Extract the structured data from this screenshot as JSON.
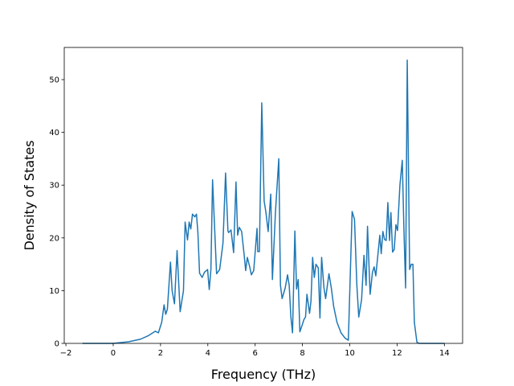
{
  "chart_data": {
    "type": "line",
    "xlabel": "Frequency (THz)",
    "ylabel": "Density of States",
    "color": "#1f77b4",
    "x": [
      -1.3,
      0,
      0.65,
      1.16,
      1.5,
      1.78,
      1.91,
      2.05,
      2.15,
      2.22,
      2.29,
      2.42,
      2.49,
      2.59,
      2.7,
      2.83,
      2.97,
      3.04,
      3.14,
      3.21,
      3.28,
      3.35,
      3.45,
      3.52,
      3.58,
      3.65,
      3.76,
      3.86,
      3.99,
      4.06,
      4.13,
      4.2,
      4.37,
      4.5,
      4.64,
      4.75,
      4.85,
      4.88,
      4.98,
      5.09,
      5.19,
      5.26,
      5.33,
      5.43,
      5.53,
      5.6,
      5.67,
      5.77,
      5.84,
      5.94,
      6.08,
      6.11,
      6.18,
      6.28,
      6.38,
      6.45,
      6.55,
      6.66,
      6.73,
      6.86,
      7.0,
      7.07,
      7.14,
      7.27,
      7.37,
      7.44,
      7.51,
      7.58,
      7.68,
      7.75,
      7.82,
      7.89,
      7.99,
      8.06,
      8.13,
      8.19,
      8.3,
      8.36,
      8.43,
      8.5,
      8.57,
      8.67,
      8.74,
      8.81,
      8.91,
      8.98,
      9.12,
      9.22,
      9.32,
      9.46,
      9.63,
      9.8,
      9.94,
      10.1,
      10.2,
      10.3,
      10.38,
      10.5,
      10.6,
      10.69,
      10.75,
      10.86,
      10.96,
      11.03,
      11.1,
      11.2,
      11.27,
      11.33,
      11.4,
      11.47,
      11.54,
      11.61,
      11.68,
      11.74,
      11.81,
      11.88,
      11.95,
      12.02,
      12.12,
      12.22,
      12.29,
      12.36,
      12.43,
      12.53,
      12.6,
      12.67,
      12.73,
      12.84,
      12.94,
      14.0
    ],
    "values": [
      0,
      0,
      0.3,
      0.8,
      1.5,
      2.3,
      2.0,
      4.0,
      7.3,
      5.5,
      6.5,
      15.4,
      10,
      7.5,
      17.6,
      6,
      10,
      23,
      19.6,
      23,
      21.7,
      24.5,
      24,
      24.5,
      21,
      13.3,
      12.5,
      13.5,
      14,
      10.2,
      14,
      31,
      13.2,
      14,
      19,
      32.3,
      21.3,
      21,
      21.5,
      17.2,
      30.6,
      20.5,
      22,
      21.2,
      17,
      13.8,
      16.3,
      14.5,
      13,
      13.8,
      21.8,
      17.4,
      17.4,
      45.6,
      27,
      25,
      21.2,
      28.3,
      12.1,
      25,
      35,
      11,
      8.5,
      10.5,
      13,
      11,
      5,
      2,
      21.3,
      10.3,
      12.1,
      2.2,
      3.5,
      4.5,
      5,
      9.3,
      5.7,
      8,
      16.3,
      12.5,
      15,
      14.3,
      4.8,
      16.3,
      10.5,
      8.5,
      13.2,
      10.5,
      7,
      4,
      2,
      1,
      0.6,
      25,
      23.5,
      11,
      5,
      8.3,
      16.7,
      11,
      22.2,
      9.3,
      13.5,
      14.5,
      12.8,
      17.3,
      20.5,
      17,
      21.2,
      19.7,
      19.5,
      26.7,
      19.5,
      24.8,
      17.3,
      17.8,
      22.5,
      21.4,
      30,
      34.7,
      21.5,
      10.5,
      53.7,
      14,
      15,
      15,
      4,
      0.2,
      0,
      0
    ],
    "xlim": [
      -2.07,
      14.77
    ],
    "ylim": [
      0,
      56.1
    ],
    "xticks": [
      {
        "value": -2,
        "label": "−2"
      },
      0,
      2,
      4,
      6,
      8,
      10,
      12,
      14
    ],
    "yticks": [
      0,
      10,
      20,
      30,
      40,
      50
    ]
  }
}
